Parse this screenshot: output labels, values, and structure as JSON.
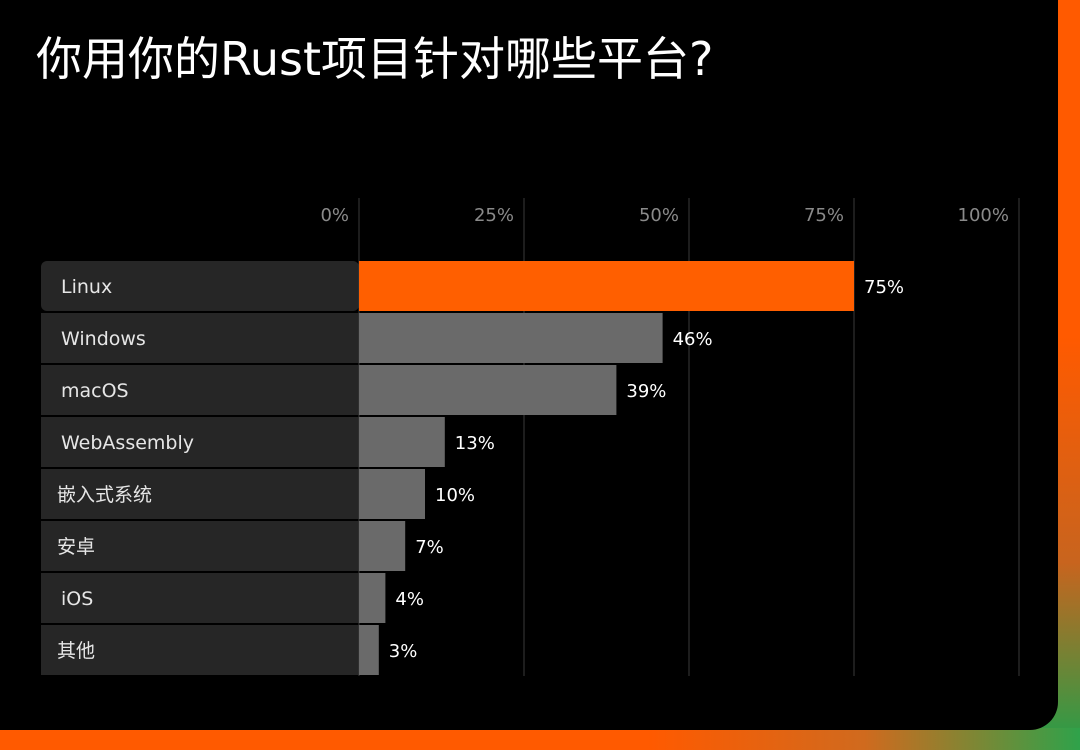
{
  "colors": {
    "highlight": "#ff5f00",
    "bar": "#6a6a6a",
    "label_bg": "#262626",
    "grid": "#3a3a3a"
  },
  "chart_data": {
    "type": "bar",
    "orientation": "horizontal",
    "title": "你用你的Rust项目针对哪些平台?",
    "categories": [
      "Linux",
      "Windows",
      "macOS",
      "WebAssembly",
      "嵌入式系统",
      "安卓",
      "iOS",
      "其他"
    ],
    "values": [
      75,
      46,
      39,
      13,
      10,
      7,
      4,
      3
    ],
    "value_labels": [
      "75%",
      "46%",
      "39%",
      "13%",
      "10%",
      "7%",
      "4%",
      "3%"
    ],
    "highlight_index": 0,
    "xlim": [
      0,
      100
    ],
    "x_ticks": [
      0,
      25,
      50,
      75,
      100
    ],
    "x_tick_labels": [
      "0%",
      "25%",
      "50%",
      "75%",
      "100%"
    ],
    "grid": true,
    "xlabel": "",
    "ylabel": ""
  }
}
